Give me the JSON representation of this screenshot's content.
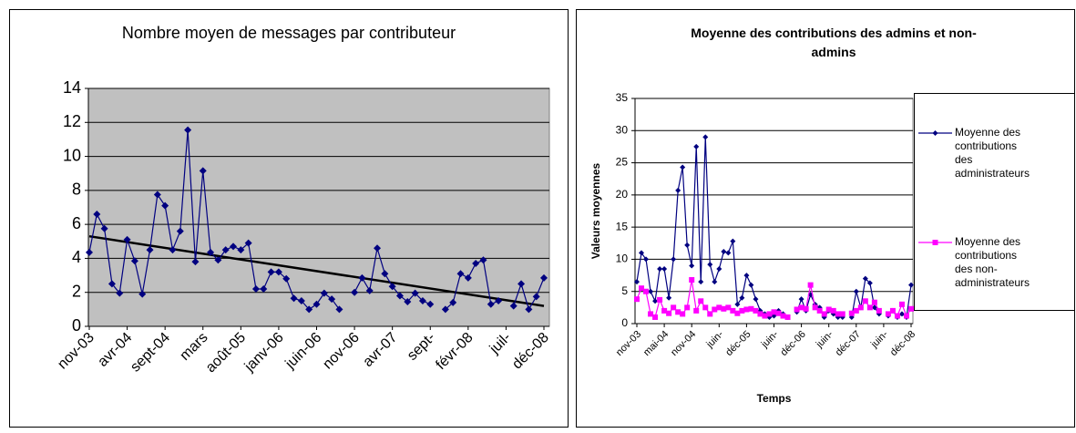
{
  "chart_data": [
    {
      "type": "line",
      "title": "Nombre moyen de messages par contributeur",
      "categories": [
        "nov-03",
        null,
        null,
        null,
        null,
        "avr-04",
        null,
        null,
        null,
        null,
        "sept-04",
        null,
        null,
        null,
        null,
        "mars",
        null,
        null,
        null,
        null,
        "août-05",
        null,
        null,
        null,
        null,
        "janv-06",
        null,
        null,
        null,
        null,
        "juin-06",
        null,
        null,
        null,
        null,
        "nov-06",
        null,
        null,
        null,
        null,
        "avr-07",
        null,
        null,
        null,
        null,
        "sept-",
        null,
        null,
        null,
        null,
        "févr-08",
        null,
        null,
        null,
        null,
        "juil-",
        null,
        null,
        null,
        null,
        "déc-08"
      ],
      "series": [
        {
          "color": "#000080",
          "values": [
            4.35,
            6.6,
            5.75,
            2.5,
            1.95,
            5.1,
            3.85,
            1.9,
            4.5,
            7.75,
            7.1,
            4.5,
            5.6,
            11.55,
            3.8,
            9.15,
            4.35,
            3.9,
            4.5,
            4.7,
            4.5,
            4.9,
            2.2,
            2.2,
            3.2,
            3.2,
            2.8,
            1.65,
            1.5,
            1.0,
            1.3,
            1.95,
            1.6,
            1.0,
            null,
            2.0,
            2.85,
            2.1,
            4.6,
            3.1,
            2.35,
            1.8,
            1.45,
            1.95,
            1.5,
            1.3,
            null,
            1.0,
            1.4,
            3.1,
            2.85,
            3.7,
            3.9,
            1.3,
            1.5,
            null,
            1.2,
            2.5,
            1.0,
            1.75,
            2.85
          ]
        }
      ],
      "trendline": {
        "start": 5.3,
        "end": 1.2,
        "color": "#000000"
      },
      "ylim": [
        0,
        14
      ],
      "yticks": [
        0,
        2,
        4,
        6,
        8,
        10,
        12,
        14
      ],
      "grid": true
    },
    {
      "type": "line",
      "title": "Moyenne des contributions des admins et non-admins",
      "y_label": "Valeurs moyennes",
      "x_label": "Temps",
      "categories": [
        "nov-03",
        null,
        null,
        null,
        null,
        null,
        "mai-04",
        null,
        null,
        null,
        null,
        null,
        "nov-04",
        null,
        null,
        null,
        null,
        null,
        "juin-",
        null,
        null,
        null,
        null,
        null,
        "déc-05",
        null,
        null,
        null,
        null,
        null,
        "juin-",
        null,
        null,
        null,
        null,
        null,
        "déc-06",
        null,
        null,
        null,
        null,
        null,
        "juin-",
        null,
        null,
        null,
        null,
        null,
        "déc-07",
        null,
        null,
        null,
        null,
        null,
        "juin-",
        null,
        null,
        null,
        null,
        null,
        "déc-08"
      ],
      "series": [
        {
          "name": "Moyenne des contributions des administrateurs",
          "color": "#000080",
          "values": [
            6.5,
            11,
            10,
            5,
            3.5,
            8.5,
            8.5,
            4,
            10,
            20.7,
            24.3,
            12.2,
            9,
            27.5,
            6.5,
            29,
            9.2,
            6.5,
            8.5,
            11.2,
            11,
            12.8,
            3,
            4,
            7.5,
            6,
            3.8,
            2,
            1.5,
            1,
            1.2,
            2,
            1.5,
            1,
            null,
            1.8,
            3.8,
            2,
            4.5,
            3,
            2.5,
            1,
            2,
            1.5,
            1,
            1,
            null,
            1,
            5,
            2.5,
            7,
            6.3,
            2.5,
            1.5,
            null,
            1.2,
            2,
            1,
            1.5,
            1,
            6
          ]
        },
        {
          "name": "Moyenne des contributions des non-administrateurs",
          "color": "#ff00ff",
          "values": [
            3.8,
            5.5,
            5,
            1.5,
            1,
            3.7,
            2,
            1.6,
            2.5,
            1.8,
            1.5,
            2.5,
            6.8,
            2,
            3.5,
            2.5,
            1.5,
            2.2,
            2.5,
            2.3,
            2.5,
            2,
            1.6,
            2,
            2.2,
            2.3,
            2,
            1.5,
            1.2,
            1.5,
            1.8,
            1.6,
            1.2,
            1,
            null,
            2.2,
            2.5,
            2.3,
            6,
            2.5,
            2,
            1.5,
            2.2,
            2,
            1.5,
            1.5,
            null,
            1.6,
            2,
            2.5,
            3.5,
            2.5,
            3.3,
            2,
            null,
            1.5,
            2,
            1.2,
            3,
            1.2,
            2.3
          ]
        }
      ],
      "ylim": [
        0,
        35
      ],
      "yticks": [
        0,
        5,
        10,
        15,
        20,
        25,
        30,
        35
      ],
      "grid": true,
      "legend": "right"
    }
  ]
}
